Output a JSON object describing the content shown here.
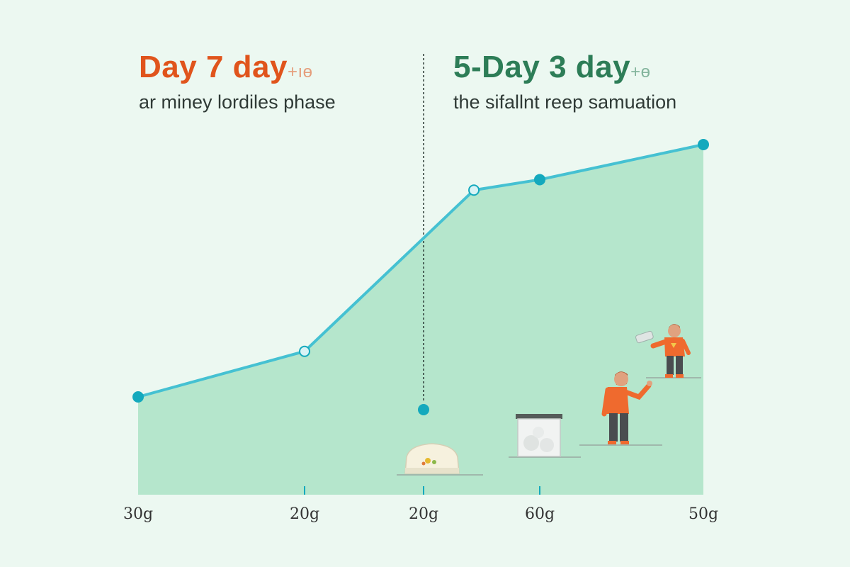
{
  "colors": {
    "background": "#ecf8f1",
    "area": "#b5e6cc",
    "line": "#45c1d2",
    "point": "#14a9bd",
    "left_heading": "#e0541c",
    "right_heading": "#2d7d57",
    "divider": "#2d3b36"
  },
  "left": {
    "heading": "Day 7 day",
    "heading_suffix": "+ıө",
    "subheading": "ar  miney lordiles phase"
  },
  "right": {
    "heading": "5-Day 3 day",
    "heading_suffix": "+ө",
    "subheading": "the sifallnt reep samuation"
  },
  "icons": [
    "food-tray-icon",
    "storage-container-icon",
    "person-reaching-icon",
    "person-holding-bottle-icon"
  ],
  "chart_data": {
    "type": "area",
    "x_tick_labels": [
      "30g",
      "20g",
      "20g",
      "60g",
      "50g"
    ],
    "points": [
      {
        "x": 0,
        "y": 28,
        "marker": "dot"
      },
      {
        "x": 1,
        "y": 41,
        "marker": "ring"
      },
      {
        "x": 1.72,
        "y": 87,
        "marker": "ring"
      },
      {
        "x": 2,
        "y": 90,
        "marker": "dot"
      },
      {
        "x": 3,
        "y": 100,
        "marker": "dot"
      }
    ],
    "divider": {
      "x": 0.72,
      "point_y": 24
    },
    "xlim": [
      0,
      3
    ],
    "ylim": [
      0,
      100
    ],
    "grid": false,
    "legend": "none"
  }
}
